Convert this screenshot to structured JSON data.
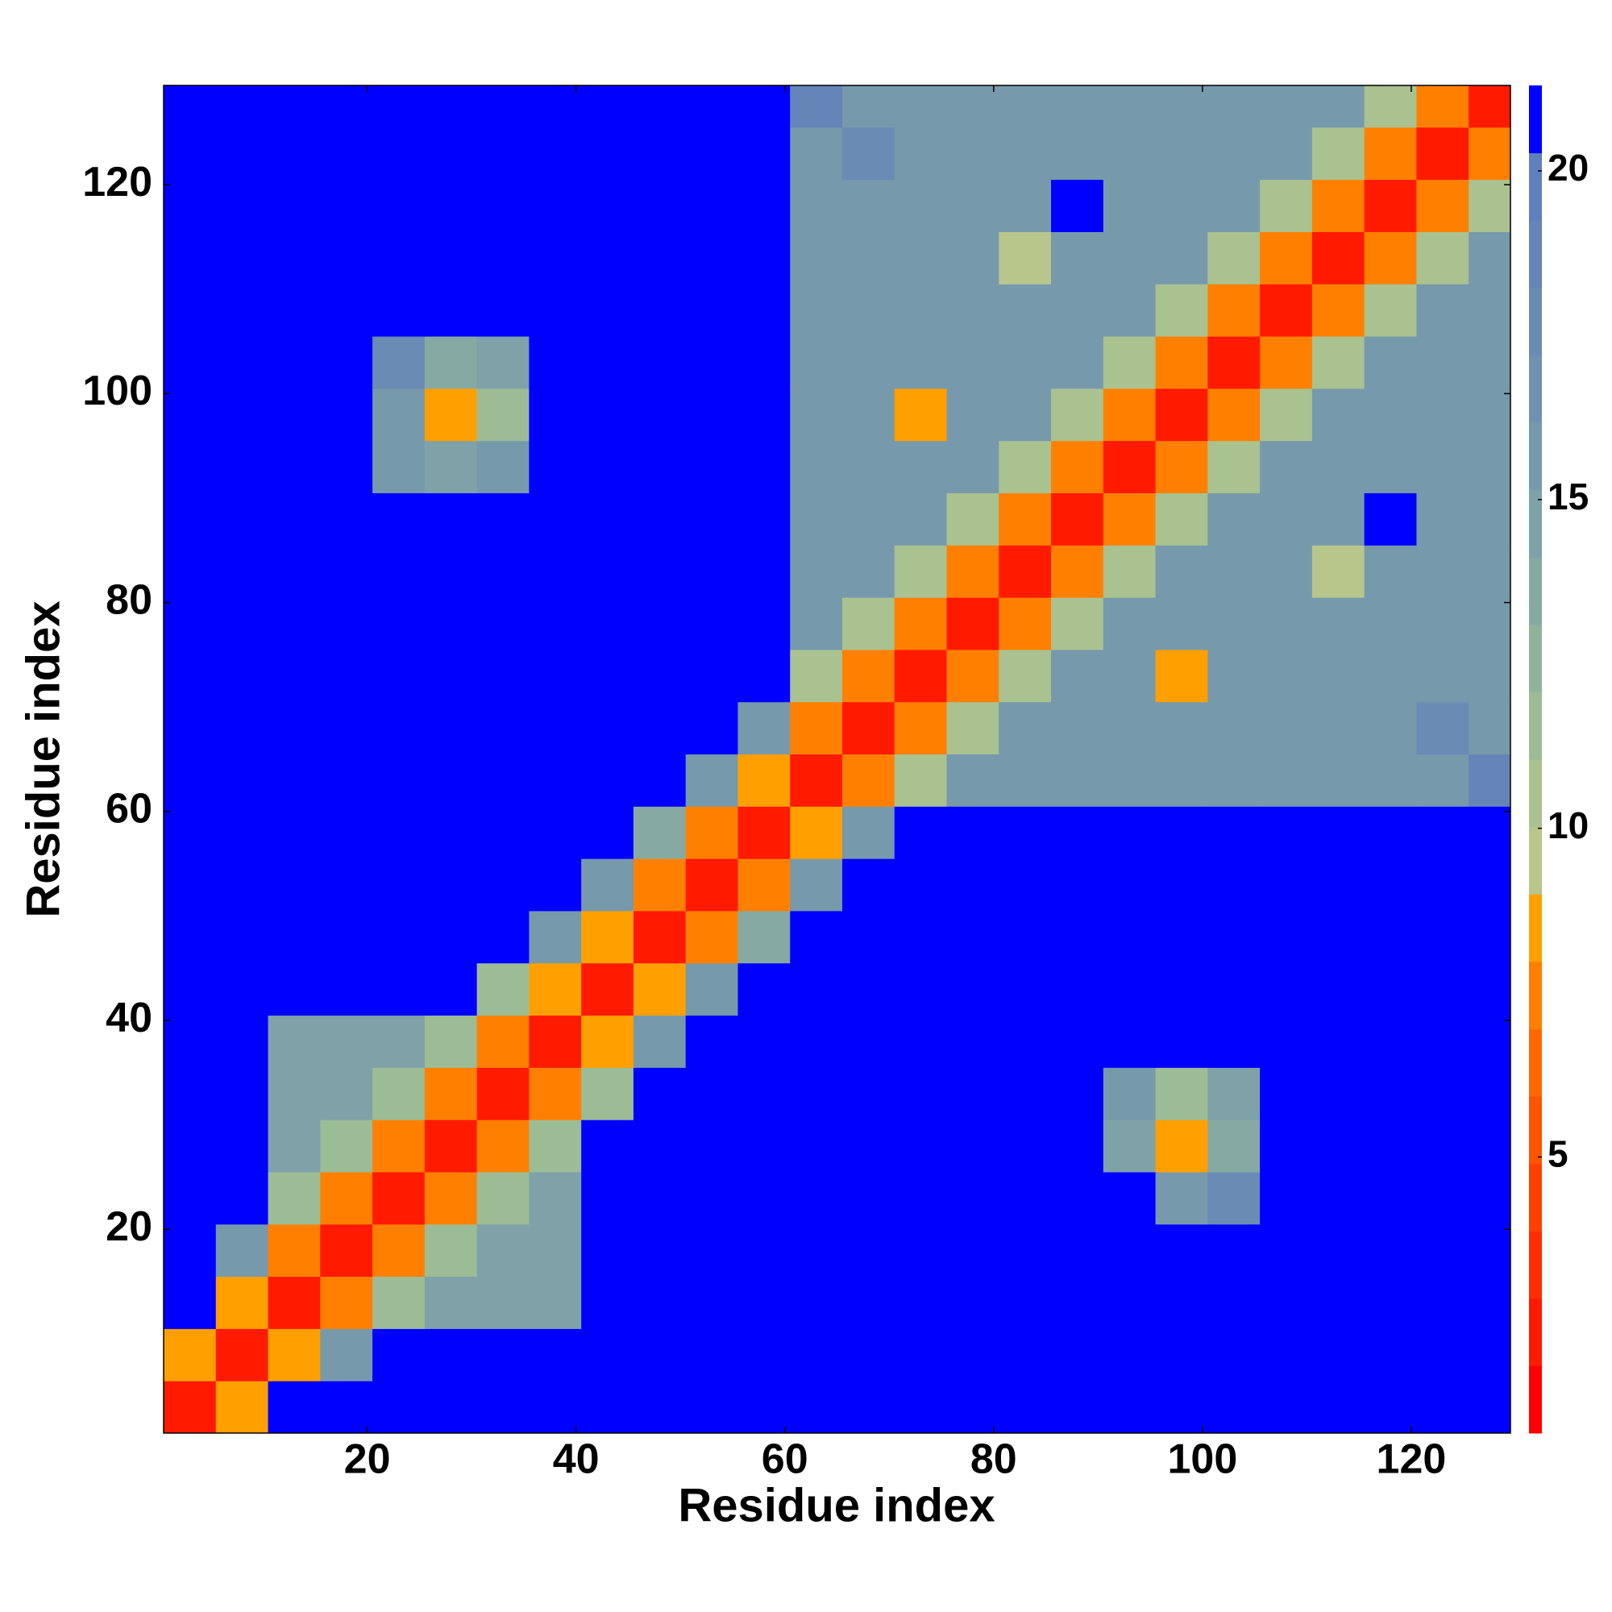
{
  "chart_data": {
    "type": "heatmap",
    "x_label": "Residue index",
    "y_label": "Residue index",
    "xbins": [
      0.5,
      5.5,
      10.5,
      15.5,
      20.5,
      25.5,
      30.5,
      35.5,
      40.5,
      45.5,
      50.5,
      55.5,
      60.5,
      65.5,
      70.5,
      75.5,
      80.5,
      85.5,
      90.5,
      95.5,
      100.5,
      105.5,
      110.5,
      115.5,
      120.5,
      125.5,
      129.5
    ],
    "ybins": [
      0.5,
      5.5,
      10.5,
      15.5,
      20.5,
      25.5,
      30.5,
      35.5,
      40.5,
      45.5,
      50.5,
      55.5,
      60.5,
      65.5,
      70.5,
      75.5,
      80.5,
      85.5,
      90.5,
      95.5,
      100.5,
      105.5,
      110.5,
      115.5,
      120.5,
      125.5,
      129.5
    ],
    "xlim": [
      0.5,
      129.5
    ],
    "ylim": [
      0.5,
      129.5
    ],
    "xticks": [
      20,
      40,
      60,
      80,
      100,
      120
    ],
    "yticks": [
      20,
      40,
      60,
      80,
      100,
      120
    ],
    "clim": [
      0.8,
      21.3
    ],
    "cticks": [
      5,
      10,
      15,
      20
    ],
    "colors": [
      "#ff0000",
      "#ff1a00",
      "#ff2e00",
      "#ff4000",
      "#ff5500",
      "#ff6a00",
      "#ff8000",
      "#ffa000",
      "#b8c68c",
      "#a9c290",
      "#9cbc96",
      "#90b39c",
      "#86aaa2",
      "#7ea2a8",
      "#7799ac",
      "#7092b0",
      "#6a8bb4",
      "#6585b8",
      "#5f80bc",
      "#0000ff"
    ],
    "z": [
      [
        2,
        9,
        21,
        21,
        21,
        21,
        21,
        21,
        21,
        21,
        21,
        21,
        21,
        21,
        21,
        21,
        21,
        21,
        21,
        21,
        21,
        21,
        21,
        21,
        21,
        21
      ],
      [
        9,
        2,
        9,
        16,
        21,
        21,
        21,
        21,
        21,
        21,
        21,
        21,
        21,
        21,
        21,
        21,
        21,
        21,
        21,
        21,
        21,
        21,
        21,
        21,
        21,
        21
      ],
      [
        21,
        9,
        2,
        7,
        12,
        15,
        15,
        15,
        21,
        21,
        21,
        21,
        21,
        21,
        21,
        21,
        21,
        21,
        21,
        21,
        21,
        21,
        21,
        21,
        21,
        21
      ],
      [
        21,
        16,
        7,
        2,
        7,
        12,
        15,
        15,
        21,
        21,
        21,
        21,
        21,
        21,
        21,
        21,
        21,
        21,
        21,
        21,
        21,
        21,
        21,
        21,
        21,
        21
      ],
      [
        21,
        21,
        12,
        7,
        2,
        7,
        12,
        15,
        21,
        21,
        21,
        21,
        21,
        21,
        21,
        21,
        21,
        21,
        21,
        16,
        18,
        21,
        21,
        21,
        21,
        21
      ],
      [
        21,
        21,
        15,
        12,
        7,
        2,
        7,
        12,
        21,
        21,
        21,
        21,
        21,
        21,
        21,
        21,
        21,
        21,
        15,
        8,
        14,
        21,
        21,
        21,
        21,
        21
      ],
      [
        21,
        21,
        15,
        15,
        12,
        7,
        2,
        7,
        12,
        21,
        21,
        21,
        21,
        21,
        21,
        21,
        21,
        21,
        16,
        12,
        15,
        21,
        21,
        21,
        21,
        21
      ],
      [
        21,
        21,
        15,
        15,
        15,
        12,
        7,
        2,
        9,
        16,
        21,
        21,
        21,
        21,
        21,
        21,
        21,
        21,
        21,
        21,
        21,
        21,
        21,
        21,
        21,
        21
      ],
      [
        21,
        21,
        21,
        21,
        21,
        21,
        12,
        9,
        2,
        9,
        16,
        21,
        21,
        21,
        21,
        21,
        21,
        21,
        21,
        21,
        21,
        21,
        21,
        21,
        21,
        21
      ],
      [
        21,
        21,
        21,
        21,
        21,
        21,
        21,
        16,
        9,
        2,
        7,
        14,
        21,
        21,
        21,
        21,
        21,
        21,
        21,
        21,
        21,
        21,
        21,
        21,
        21,
        21
      ],
      [
        21,
        21,
        21,
        21,
        21,
        21,
        21,
        21,
        16,
        7,
        2,
        7,
        16,
        21,
        21,
        21,
        21,
        21,
        21,
        21,
        21,
        21,
        21,
        21,
        21,
        21
      ],
      [
        21,
        21,
        21,
        21,
        21,
        21,
        21,
        21,
        21,
        14,
        7,
        2,
        8,
        16,
        21,
        21,
        21,
        21,
        21,
        21,
        21,
        21,
        21,
        21,
        21,
        21
      ],
      [
        21,
        21,
        21,
        21,
        21,
        21,
        21,
        21,
        21,
        21,
        16,
        8,
        2,
        7,
        11,
        16,
        16,
        16,
        16,
        16,
        16,
        16,
        16,
        16,
        16,
        19
      ],
      [
        21,
        21,
        21,
        21,
        21,
        21,
        21,
        21,
        21,
        21,
        21,
        16,
        7,
        2,
        7,
        11,
        16,
        16,
        16,
        16,
        16,
        16,
        16,
        16,
        18,
        16
      ],
      [
        21,
        21,
        21,
        21,
        21,
        21,
        21,
        21,
        21,
        21,
        21,
        21,
        11,
        7,
        2,
        7,
        11,
        16,
        16,
        9,
        16,
        16,
        16,
        16,
        16,
        16
      ],
      [
        21,
        21,
        21,
        21,
        21,
        21,
        21,
        21,
        21,
        21,
        21,
        21,
        16,
        11,
        7,
        2,
        7,
        11,
        16,
        16,
        16,
        16,
        16,
        16,
        16,
        16
      ],
      [
        21,
        21,
        21,
        21,
        21,
        21,
        21,
        21,
        21,
        21,
        21,
        21,
        16,
        16,
        11,
        7,
        2,
        7,
        11,
        16,
        16,
        16,
        10,
        16,
        16,
        16
      ],
      [
        21,
        21,
        21,
        21,
        21,
        21,
        21,
        21,
        21,
        21,
        21,
        21,
        16,
        16,
        16,
        11,
        7,
        2,
        7,
        11,
        16,
        16,
        16,
        21,
        16,
        16
      ],
      [
        21,
        21,
        21,
        21,
        16,
        15,
        16,
        21,
        21,
        21,
        21,
        21,
        16,
        16,
        16,
        16,
        11,
        7,
        2,
        7,
        11,
        16,
        16,
        16,
        16,
        16
      ],
      [
        21,
        21,
        21,
        21,
        16,
        8,
        12,
        21,
        21,
        21,
        21,
        21,
        16,
        16,
        9,
        16,
        16,
        11,
        7,
        2,
        7,
        11,
        16,
        16,
        16,
        16
      ],
      [
        21,
        21,
        21,
        21,
        18,
        14,
        15,
        21,
        21,
        21,
        21,
        21,
        16,
        16,
        16,
        16,
        16,
        16,
        11,
        7,
        2,
        7,
        11,
        16,
        16,
        16
      ],
      [
        21,
        21,
        21,
        21,
        21,
        21,
        21,
        21,
        21,
        21,
        21,
        21,
        16,
        16,
        16,
        16,
        16,
        16,
        16,
        11,
        7,
        2,
        7,
        11,
        16,
        16
      ],
      [
        21,
        21,
        21,
        21,
        21,
        21,
        21,
        21,
        21,
        21,
        21,
        21,
        16,
        16,
        16,
        16,
        10,
        16,
        16,
        16,
        11,
        7,
        2,
        7,
        11,
        16
      ],
      [
        21,
        21,
        21,
        21,
        21,
        21,
        21,
        21,
        21,
        21,
        21,
        21,
        16,
        16,
        16,
        16,
        16,
        21,
        16,
        16,
        16,
        11,
        7,
        2,
        7,
        11
      ],
      [
        21,
        21,
        21,
        21,
        21,
        21,
        21,
        21,
        21,
        21,
        21,
        21,
        16,
        18,
        16,
        16,
        16,
        16,
        16,
        16,
        16,
        16,
        11,
        7,
        2,
        7
      ],
      [
        21,
        21,
        21,
        21,
        21,
        21,
        21,
        21,
        21,
        21,
        21,
        21,
        19,
        16,
        16,
        16,
        16,
        16,
        16,
        16,
        16,
        16,
        16,
        11,
        7,
        2
      ]
    ]
  }
}
